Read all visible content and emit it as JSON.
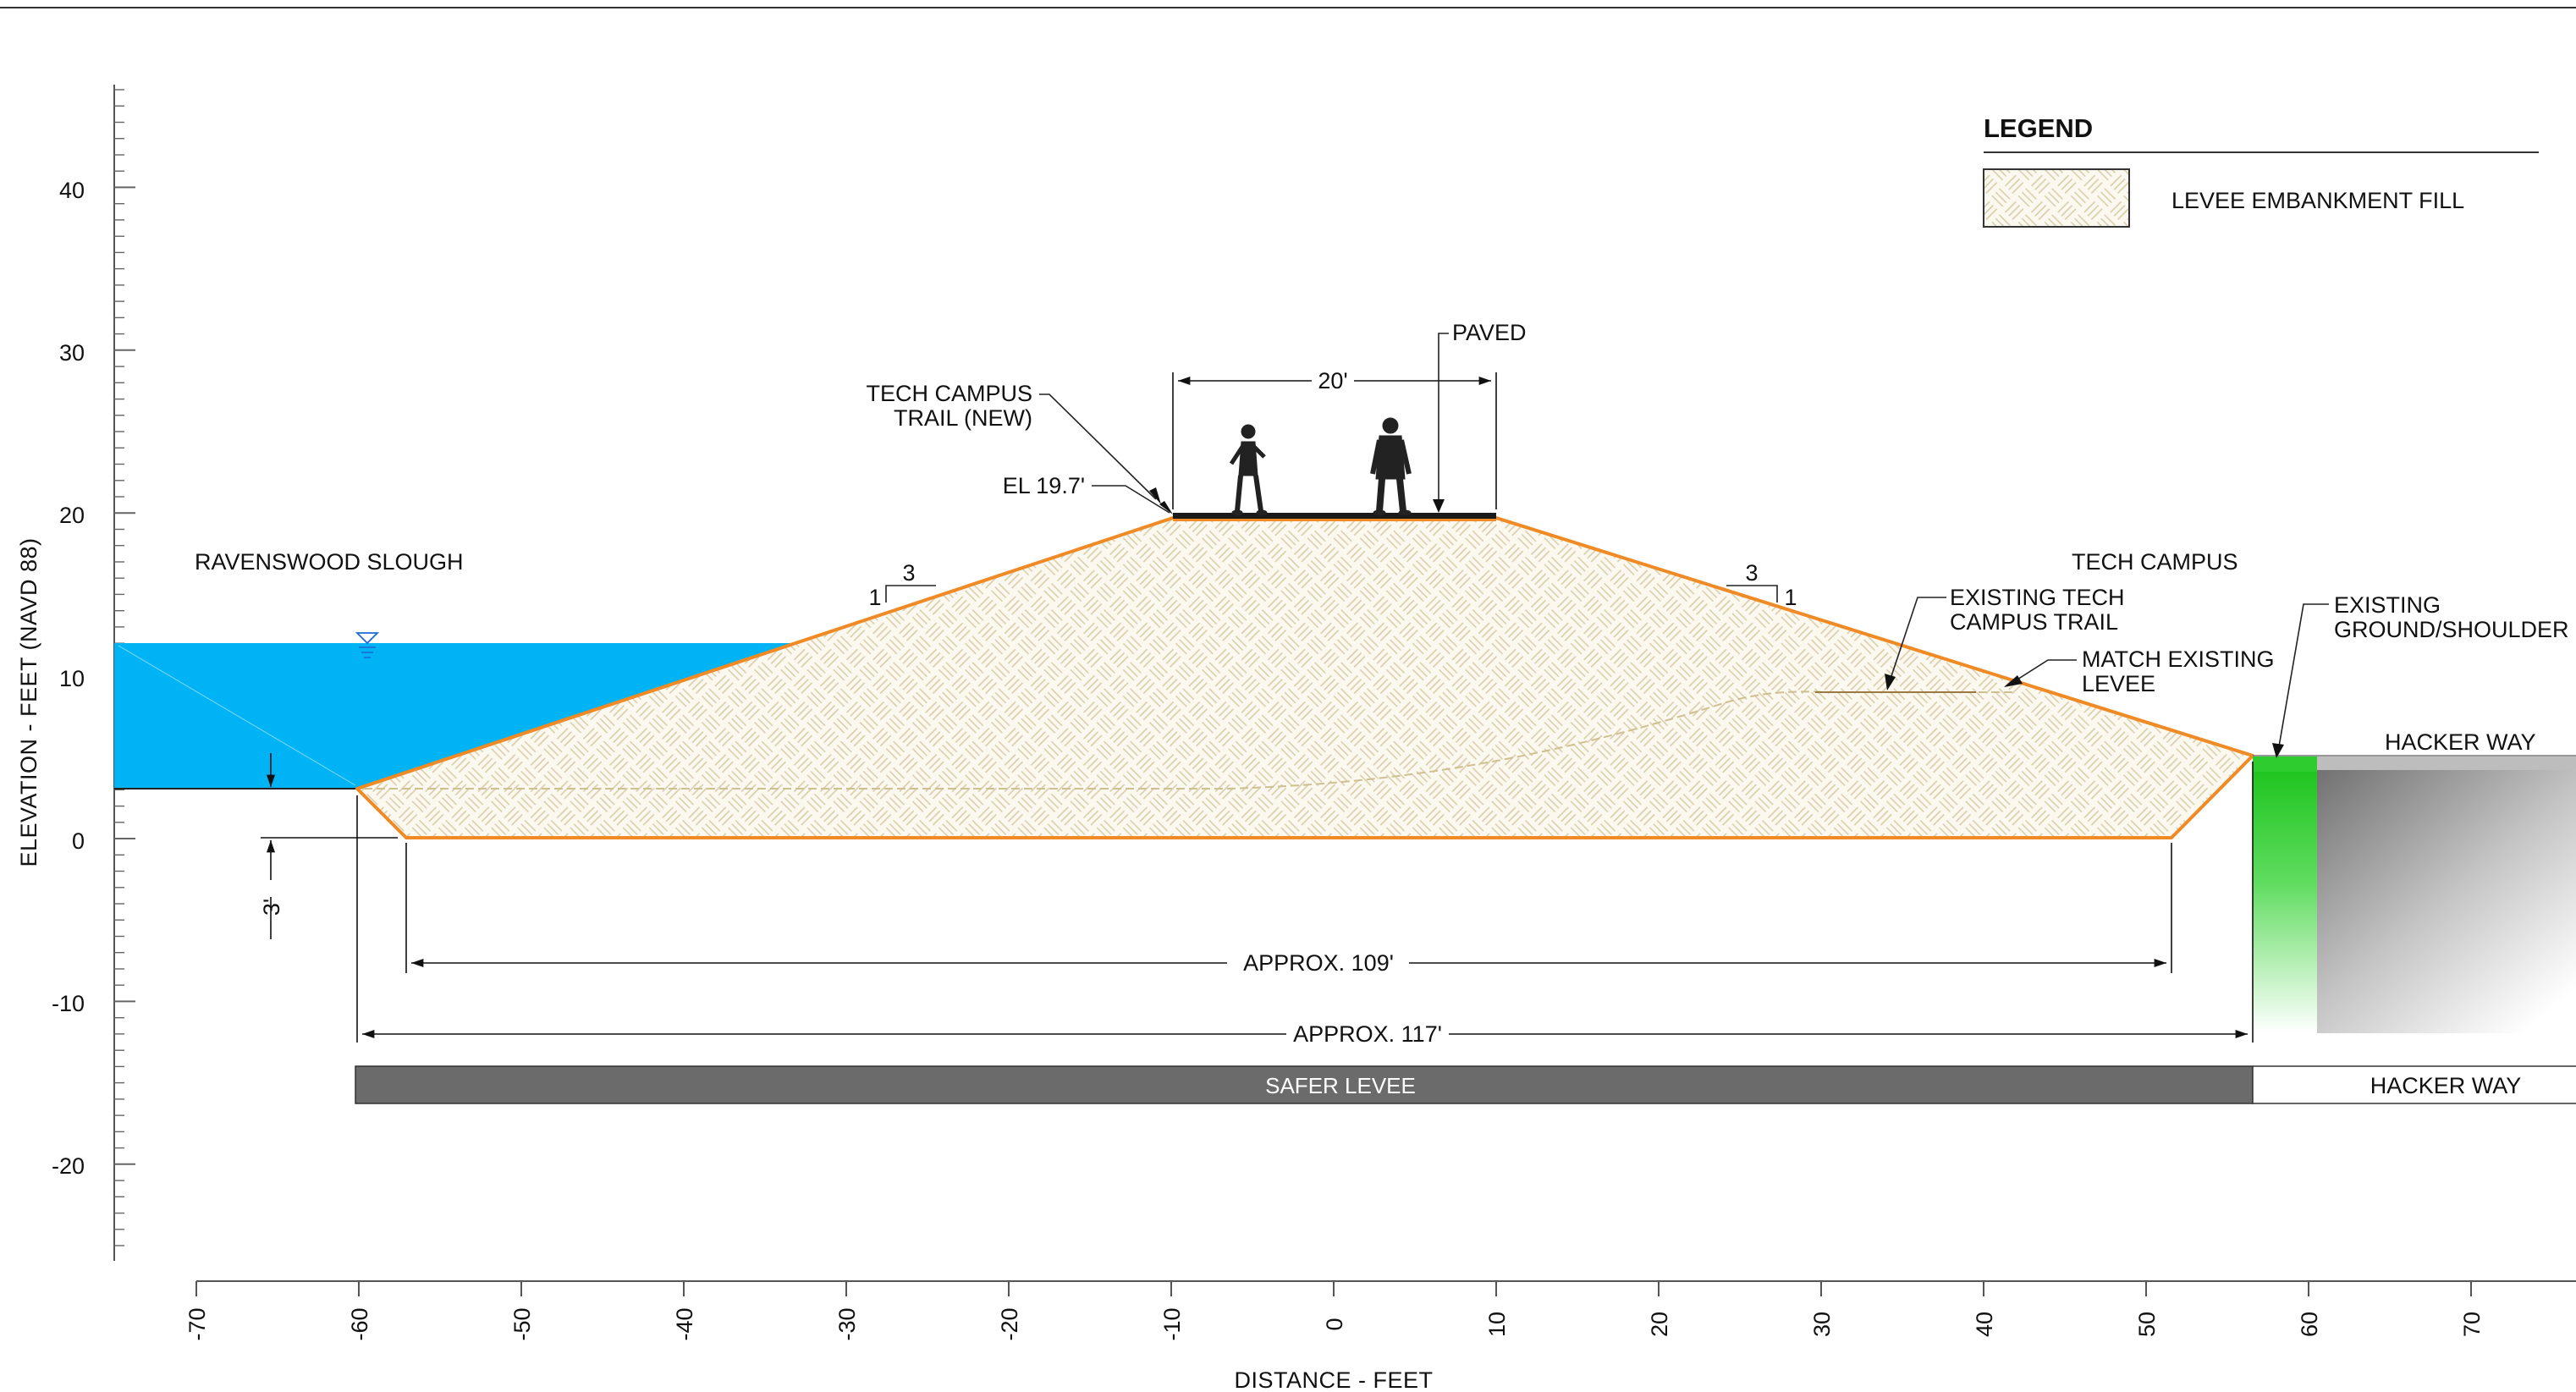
{
  "colors": {
    "embankment_outline": "#f08a24",
    "water": "#00b3f5",
    "shoulder": "#2ecc2e",
    "safer_levee_band": "#6b6b6b",
    "fill_pattern": "#d8cca8"
  },
  "axes": {
    "y_title": "ELEVATION - FEET (NAVD 88)",
    "x_title": "DISTANCE - FEET",
    "y_tick_labels": [
      "40",
      "30",
      "20",
      "10",
      "0",
      "-10",
      "-20"
    ],
    "x_tick_labels": [
      "-70",
      "-60",
      "-50",
      "-40",
      "-30",
      "-20",
      "-10",
      "0",
      "10",
      "20",
      "30",
      "40",
      "50",
      "60",
      "70"
    ]
  },
  "legend": {
    "title": "LEGEND",
    "items": [
      {
        "label": "LEVEE EMBANKMENT FILL",
        "swatch": "crosshatch-pattern"
      }
    ]
  },
  "labels": {
    "ravenswood_slough": "RAVENSWOOD SLOUGH",
    "tech_campus": "TECH CAMPUS",
    "paved": "PAVED",
    "trail_width": "20'",
    "trail_new_line1": "TECH CAMPUS",
    "trail_new_line2": "TRAIL (NEW)",
    "crest_elevation": "EL 19.7'",
    "existing_trail_line1": "EXISTING TECH",
    "existing_trail_line2": "CAMPUS TRAIL",
    "match_levee_line1": "MATCH EXISTING",
    "match_levee_line2": "LEVEE",
    "existing_ground_line1": "EXISTING",
    "existing_ground_line2": "GROUND/SHOULDER",
    "hacker_way_top": "HACKER WAY",
    "depth_3ft": "3'",
    "left_slope_run": "3",
    "left_slope_rise": "1",
    "right_slope_run": "3",
    "right_slope_rise": "1",
    "base_width": "APPROX. 109'",
    "total_width": "APPROX. 117'",
    "band_safer_levee": "SAFER LEVEE",
    "band_hacker_way": "HACKER WAY"
  }
}
